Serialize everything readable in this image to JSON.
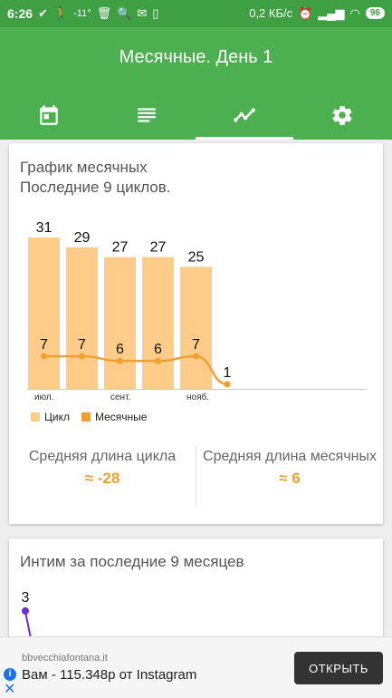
{
  "status_bar": {
    "time": "6:26",
    "temperature": "-11°",
    "network_speed": "0,2 КБ/с",
    "battery": "96"
  },
  "app_bar": {
    "title": "Месячные. День 1",
    "tabs": [
      {
        "icon": "calendar-icon",
        "selected": false
      },
      {
        "icon": "list-icon",
        "selected": false
      },
      {
        "icon": "chart-line-icon",
        "selected": true
      },
      {
        "icon": "settings-icon",
        "selected": false
      }
    ],
    "accent": "#4caf50"
  },
  "cycle_card": {
    "title_line1": "График месячных",
    "title_line2": "Последние 9 циклов.",
    "legend": {
      "cycle": "Цикл",
      "period": "Месячные"
    },
    "stats": {
      "avg_cycle_label": "Средняя длина цикла",
      "avg_cycle_value": "≈ -28",
      "avg_period_label": "Средняя длина месячных",
      "avg_period_value": "≈ 6"
    }
  },
  "chart_data": {
    "type": "bar",
    "categories": [
      "июл.",
      "",
      "сент.",
      "",
      "нояб.",
      ""
    ],
    "series": [
      {
        "name": "Цикл",
        "type": "bar",
        "values": [
          31,
          29,
          27,
          27,
          25,
          null
        ],
        "color": "#ffcc8a"
      },
      {
        "name": "Месячные",
        "type": "line",
        "values": [
          7,
          7,
          6,
          6,
          7,
          1
        ],
        "color": "#f0a030"
      }
    ],
    "ylim": [
      0,
      31
    ],
    "legend_position": "bottom-left",
    "grid": false
  },
  "intimacy_card": {
    "title": "Интим за последние 9 месяцев",
    "first_value": "3",
    "line_color": "#6a2fd8"
  },
  "ad": {
    "domain": "bbvecchiafontana.it",
    "text": "Вам - 115.348р от Instagram",
    "button": "ОТКРЫТЬ"
  }
}
